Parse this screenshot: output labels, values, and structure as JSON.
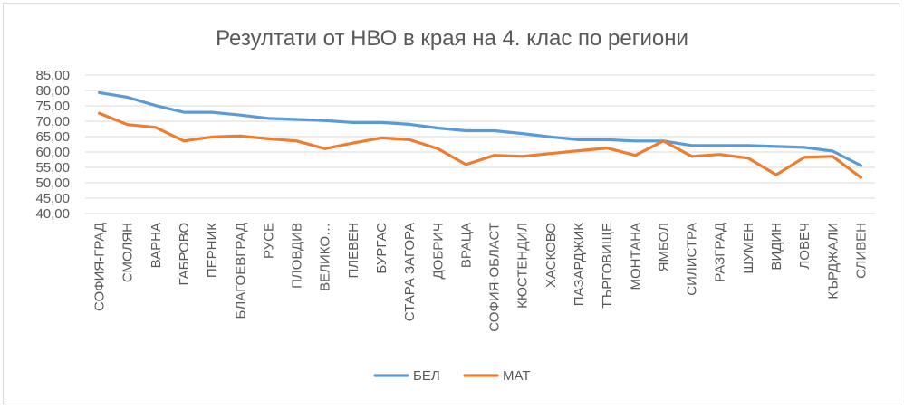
{
  "chart_data": {
    "type": "line",
    "title": "Резултати от НВО в края на 4. клас по региони",
    "xlabel": "",
    "ylabel": "",
    "ylim": [
      40,
      85
    ],
    "ytick_step": 5,
    "ytick_labels": [
      "40,00",
      "45,00",
      "50,00",
      "55,00",
      "60,00",
      "65,00",
      "70,00",
      "75,00",
      "80,00",
      "85,00"
    ],
    "grid": true,
    "legend_position": "bottom",
    "categories": [
      "СОФИЯ-ГРАД",
      "СМОЛЯН",
      "ВАРНА",
      "ГАБРОВО",
      "ПЕРНИК",
      "БЛАГОЕВГРАД",
      "РУСЕ",
      "ПЛОВДИВ",
      "ВЕЛИКО…",
      "ПЛЕВЕН",
      "БУРГАС",
      "СТАРА ЗАГОРА",
      "ДОБРИЧ",
      "ВРАЦА",
      "СОФИЯ-ОБЛАСТ",
      "КЮСТЕНДИЛ",
      "ХАСКОВО",
      "ПАЗАРДЖИК",
      "ТЪРГОВИЩЕ",
      "МОНТАНА",
      "ЯМБОЛ",
      "СИЛИСТРА",
      "РАЗГРАД",
      "ШУМЕН",
      "ВИДИН",
      "ЛОВЕЧ",
      "КЪРДЖАЛИ",
      "СЛИВЕН"
    ],
    "series": [
      {
        "name": "БЕЛ",
        "color": "#5b9bd5",
        "values": [
          79.3,
          77.8,
          75.1,
          72.9,
          72.9,
          72.0,
          70.9,
          70.6,
          70.2,
          69.6,
          69.6,
          69.0,
          67.8,
          66.9,
          66.9,
          66.0,
          64.9,
          64.0,
          64.0,
          63.6,
          63.6,
          62.1,
          62.1,
          62.1,
          61.8,
          61.5,
          60.3,
          55.6
        ]
      },
      {
        "name": "МАТ",
        "color": "#ed7d31",
        "values": [
          72.6,
          68.9,
          68.0,
          63.6,
          64.9,
          65.2,
          64.3,
          63.6,
          61.1,
          62.9,
          64.6,
          64.0,
          61.1,
          55.9,
          58.9,
          58.6,
          59.5,
          60.4,
          61.3,
          58.9,
          63.6,
          58.6,
          59.2,
          58.0,
          52.6,
          58.3,
          58.6,
          51.7
        ]
      }
    ]
  }
}
